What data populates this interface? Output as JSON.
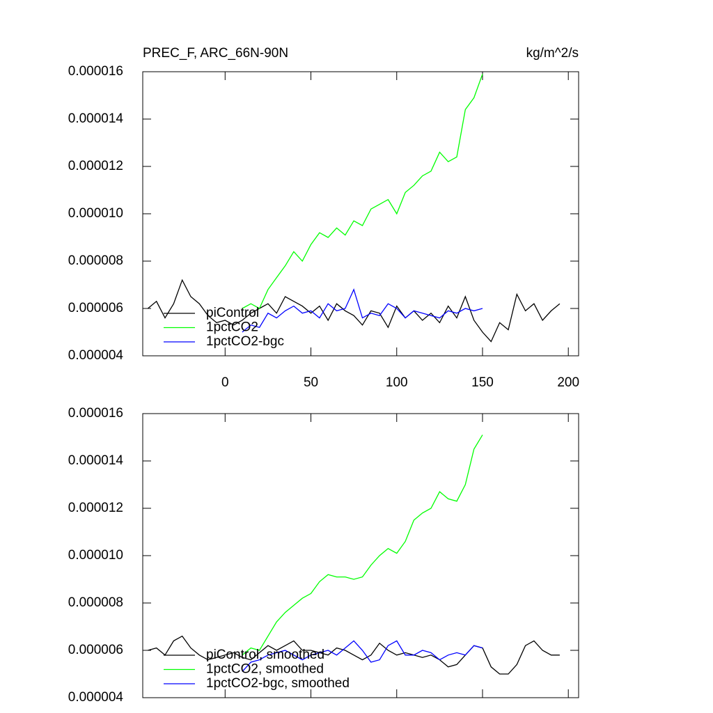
{
  "chart_data": [
    {
      "type": "line",
      "title": "PREC_F, ARC_66N-90N",
      "units": "kg/m^2/s",
      "xlim": [
        -48,
        206
      ],
      "xticks": [
        0,
        50,
        100,
        150,
        200
      ],
      "xtick_labels": true,
      "ylim": [
        4e-06,
        1.6e-05
      ],
      "yticks": [
        {
          "value": 4e-06,
          "label": "0.000004"
        },
        {
          "value": 6e-06,
          "label": "0.000006"
        },
        {
          "value": 8e-06,
          "label": "0.000008"
        },
        {
          "value": 1e-05,
          "label": "0.000010"
        },
        {
          "value": 1.2e-05,
          "label": "0.000012"
        },
        {
          "value": 1.4e-05,
          "label": "0.000014"
        },
        {
          "value": 1.6e-05,
          "label": "0.000016"
        }
      ],
      "series": [
        {
          "name": "piControl",
          "color": "#000000",
          "x": [
            -45,
            -40,
            -35,
            -30,
            -25,
            -20,
            -15,
            -10,
            -5,
            0,
            5,
            10,
            15,
            20,
            25,
            30,
            35,
            40,
            45,
            50,
            55,
            60,
            65,
            70,
            75,
            80,
            85,
            90,
            95,
            100,
            105,
            110,
            115,
            120,
            125,
            130,
            135,
            140,
            145,
            150,
            155,
            160,
            165,
            170,
            175,
            180,
            185,
            190,
            195
          ],
          "values": [
            6e-06,
            6.3e-06,
            5.6e-06,
            6.2e-06,
            7.2e-06,
            6.5e-06,
            6.2e-06,
            5.7e-06,
            5.4e-06,
            5.5e-06,
            5.3e-06,
            5.5e-06,
            5.8e-06,
            6e-06,
            6.2e-06,
            5.8e-06,
            6.5e-06,
            6.3e-06,
            6.1e-06,
            5.8e-06,
            6.1e-06,
            5.5e-06,
            6.2e-06,
            5.9e-06,
            5.7e-06,
            5.3e-06,
            5.9e-06,
            5.8e-06,
            5.2e-06,
            6.1e-06,
            5.6e-06,
            5.9e-06,
            5.5e-06,
            5.8e-06,
            5.4e-06,
            6.1e-06,
            5.6e-06,
            6.5e-06,
            5.5e-06,
            5e-06,
            4.6e-06,
            5.4e-06,
            5.1e-06,
            6.6e-06,
            5.9e-06,
            6.2e-06,
            5.5e-06,
            5.9e-06,
            6.2e-06
          ]
        },
        {
          "name": "1pctCO2",
          "color": "#00ff00",
          "x": [
            10,
            15,
            20,
            25,
            30,
            35,
            40,
            45,
            50,
            55,
            60,
            65,
            70,
            75,
            80,
            85,
            90,
            95,
            100,
            105,
            110,
            115,
            120,
            125,
            130,
            135,
            140,
            145,
            150
          ],
          "values": [
            6e-06,
            6.2e-06,
            6e-06,
            6.8e-06,
            7.3e-06,
            7.8e-06,
            8.4e-06,
            8e-06,
            8.7e-06,
            9.2e-06,
            9e-06,
            9.4e-06,
            9.1e-06,
            9.7e-06,
            9.5e-06,
            1.02e-05,
            1.04e-05,
            1.06e-05,
            1e-05,
            1.09e-05,
            1.12e-05,
            1.16e-05,
            1.18e-05,
            1.26e-05,
            1.22e-05,
            1.24e-05,
            1.44e-05,
            1.49e-05,
            1.59e-05
          ]
        },
        {
          "name": "1pctCO2-bgc",
          "color": "#0000ff",
          "x": [
            10,
            15,
            20,
            25,
            30,
            35,
            40,
            45,
            50,
            55,
            60,
            65,
            70,
            75,
            80,
            85,
            90,
            95,
            100,
            105,
            110,
            115,
            120,
            125,
            130,
            135,
            140,
            145,
            150
          ],
          "values": [
            5e-06,
            5.3e-06,
            5.2e-06,
            5.8e-06,
            5.6e-06,
            5.9e-06,
            6.1e-06,
            5.8e-06,
            5.9e-06,
            5.6e-06,
            6.2e-06,
            5.9e-06,
            6e-06,
            6.8e-06,
            5.6e-06,
            5.8e-06,
            5.7e-06,
            6.2e-06,
            6e-06,
            5.6e-06,
            5.9e-06,
            5.8e-06,
            5.7e-06,
            5.6e-06,
            5.9e-06,
            5.8e-06,
            6e-06,
            5.9e-06,
            6e-06
          ]
        }
      ]
    },
    {
      "type": "line",
      "xlim": [
        -48,
        206
      ],
      "xticks": [
        0,
        50,
        100,
        150,
        200
      ],
      "xtick_labels": false,
      "ylim": [
        4e-06,
        1.6e-05
      ],
      "yticks": [
        {
          "value": 4e-06,
          "label": "0.000004"
        },
        {
          "value": 6e-06,
          "label": "0.000006"
        },
        {
          "value": 8e-06,
          "label": "0.000008"
        },
        {
          "value": 1e-05,
          "label": "0.000010"
        },
        {
          "value": 1.2e-05,
          "label": "0.000012"
        },
        {
          "value": 1.4e-05,
          "label": "0.000014"
        },
        {
          "value": 1.6e-05,
          "label": "0.000016"
        }
      ],
      "series": [
        {
          "name": "piControl, smoothed",
          "color": "#000000",
          "x": [
            -45,
            -40,
            -35,
            -30,
            -25,
            -20,
            -15,
            -10,
            -5,
            0,
            5,
            10,
            15,
            20,
            25,
            30,
            35,
            40,
            45,
            50,
            55,
            60,
            65,
            70,
            75,
            80,
            85,
            90,
            95,
            100,
            105,
            110,
            115,
            120,
            125,
            130,
            135,
            140,
            145,
            150,
            155,
            160,
            165,
            170,
            175,
            180,
            185,
            190,
            195
          ],
          "values": [
            6e-06,
            6.1e-06,
            5.8e-06,
            6.4e-06,
            6.6e-06,
            6.1e-06,
            5.8e-06,
            5.6e-06,
            5.7e-06,
            5.8e-06,
            5.9e-06,
            5.7e-06,
            5.6e-06,
            5.9e-06,
            6.2e-06,
            6e-06,
            6.2e-06,
            6.4e-06,
            6e-06,
            6e-06,
            5.9e-06,
            5.8e-06,
            6.1e-06,
            6e-06,
            5.8e-06,
            5.6e-06,
            5.8e-06,
            6.3e-06,
            6e-06,
            5.8e-06,
            5.9e-06,
            5.8e-06,
            5.7e-06,
            5.8e-06,
            5.6e-06,
            5.3e-06,
            5.4e-06,
            5.8e-06,
            6.2e-06,
            6.1e-06,
            5.3e-06,
            5e-06,
            5e-06,
            5.4e-06,
            6.2e-06,
            6.4e-06,
            6e-06,
            5.8e-06,
            5.8e-06
          ]
        },
        {
          "name": "1pctCO2, smoothed",
          "color": "#00ff00",
          "x": [
            10,
            15,
            20,
            25,
            30,
            35,
            40,
            45,
            50,
            55,
            60,
            65,
            70,
            75,
            80,
            85,
            90,
            95,
            100,
            105,
            110,
            115,
            120,
            125,
            130,
            135,
            140,
            145,
            150
          ],
          "values": [
            5.8e-06,
            6.1e-06,
            6e-06,
            6.6e-06,
            7.2e-06,
            7.6e-06,
            7.9e-06,
            8.2e-06,
            8.4e-06,
            8.9e-06,
            9.2e-06,
            9.1e-06,
            9.1e-06,
            9e-06,
            9.1e-06,
            9.6e-06,
            1e-05,
            1.03e-05,
            1.01e-05,
            1.06e-05,
            1.15e-05,
            1.18e-05,
            1.2e-05,
            1.27e-05,
            1.24e-05,
            1.23e-05,
            1.3e-05,
            1.45e-05,
            1.51e-05
          ]
        },
        {
          "name": "1pctCO2-bgc, smoothed",
          "color": "#0000ff",
          "x": [
            10,
            15,
            20,
            25,
            30,
            35,
            40,
            45,
            50,
            55,
            60,
            65,
            70,
            75,
            80,
            85,
            90,
            95,
            100,
            105,
            110,
            115,
            120,
            125,
            130,
            135,
            140,
            145,
            150
          ],
          "values": [
            5.1e-06,
            5.5e-06,
            5.6e-06,
            5.8e-06,
            5.9e-06,
            6e-06,
            5.8e-06,
            5.6e-06,
            5.8e-06,
            5.9e-06,
            6e-06,
            5.8e-06,
            6.1e-06,
            6.4e-06,
            6e-06,
            5.5e-06,
            5.6e-06,
            6.2e-06,
            6.4e-06,
            5.8e-06,
            5.8e-06,
            6e-06,
            5.9e-06,
            5.6e-06,
            5.8e-06,
            5.9e-06,
            5.8e-06,
            6.2e-06,
            6.1e-06
          ]
        }
      ]
    }
  ]
}
